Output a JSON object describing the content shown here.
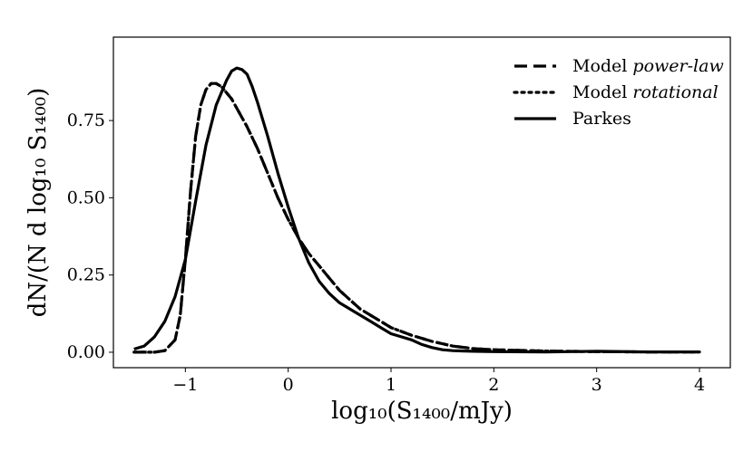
{
  "chart_data": {
    "type": "line",
    "title": "",
    "xlabel": "log₁₀(S₁₄₀₀/mJy)",
    "ylabel": "dN/(N d log₁₀ S₁₄₀₀)",
    "xlim": [
      -1.7,
      4.3
    ],
    "ylim": [
      -0.05,
      1.02
    ],
    "xticks": [
      -1,
      0,
      1,
      2,
      3,
      4
    ],
    "xtick_labels": [
      "−1",
      "0",
      "1",
      "2",
      "3",
      "4"
    ],
    "yticks": [
      0.0,
      0.25,
      0.5,
      0.75
    ],
    "ytick_labels": [
      "0.00",
      "0.25",
      "0.50",
      "0.75"
    ],
    "grid": false,
    "legend_position": "top-right",
    "series": [
      {
        "name": "Model power-law",
        "legend_prefix": "Model ",
        "legend_italic": "power-law",
        "style": "dashed",
        "color": "#000000",
        "x": [
          -1.5,
          -1.3,
          -1.2,
          -1.1,
          -1.05,
          -1.0,
          -0.95,
          -0.9,
          -0.85,
          -0.8,
          -0.75,
          -0.7,
          -0.65,
          -0.6,
          -0.55,
          -0.5,
          -0.4,
          -0.3,
          -0.2,
          -0.1,
          0.0,
          0.1,
          0.2,
          0.3,
          0.4,
          0.5,
          0.6,
          0.7,
          0.8,
          0.9,
          1.0,
          1.2,
          1.4,
          1.6,
          1.8,
          2.0,
          2.5,
          3.0,
          3.5,
          4.0
        ],
        "y": [
          0.0,
          0.0,
          0.005,
          0.04,
          0.12,
          0.3,
          0.52,
          0.7,
          0.8,
          0.85,
          0.87,
          0.87,
          0.86,
          0.84,
          0.82,
          0.79,
          0.73,
          0.66,
          0.58,
          0.5,
          0.43,
          0.37,
          0.32,
          0.28,
          0.24,
          0.2,
          0.17,
          0.14,
          0.12,
          0.1,
          0.08,
          0.055,
          0.035,
          0.02,
          0.012,
          0.008,
          0.004,
          0.002,
          0.001,
          0.001
        ]
      },
      {
        "name": "Model rotational",
        "legend_prefix": "Model ",
        "legend_italic": "rotational",
        "style": "dotted",
        "color": "#000000",
        "x": [
          -1.5,
          -1.3,
          -1.2,
          -1.1,
          -1.05,
          -1.0,
          -0.95,
          -0.9,
          -0.85,
          -0.8,
          -0.75,
          -0.7,
          -0.65,
          -0.6,
          -0.55,
          -0.5,
          -0.4,
          -0.3,
          -0.2,
          -0.1,
          0.0,
          0.1,
          0.2,
          0.3,
          0.4,
          0.5,
          0.6,
          0.7,
          0.8,
          0.9,
          1.0,
          1.2,
          1.4,
          1.6,
          1.8,
          2.0,
          2.5,
          3.0,
          3.5,
          4.0
        ],
        "y": [
          0.0,
          0.0,
          0.005,
          0.04,
          0.12,
          0.3,
          0.52,
          0.7,
          0.8,
          0.85,
          0.87,
          0.87,
          0.86,
          0.84,
          0.82,
          0.79,
          0.73,
          0.66,
          0.58,
          0.5,
          0.43,
          0.37,
          0.32,
          0.28,
          0.24,
          0.2,
          0.17,
          0.14,
          0.12,
          0.1,
          0.08,
          0.055,
          0.035,
          0.02,
          0.012,
          0.008,
          0.004,
          0.002,
          0.001,
          0.001
        ]
      },
      {
        "name": "Parkes",
        "legend_prefix": "Parkes",
        "legend_italic": "",
        "style": "solid",
        "color": "#000000",
        "x": [
          -1.5,
          -1.4,
          -1.3,
          -1.2,
          -1.1,
          -1.0,
          -0.9,
          -0.8,
          -0.7,
          -0.6,
          -0.55,
          -0.5,
          -0.45,
          -0.4,
          -0.35,
          -0.3,
          -0.2,
          -0.1,
          0.0,
          0.1,
          0.2,
          0.3,
          0.4,
          0.5,
          0.6,
          0.7,
          0.8,
          0.9,
          1.0,
          1.1,
          1.2,
          1.3,
          1.4,
          1.5,
          1.6,
          1.8,
          2.0,
          2.5,
          3.0,
          3.5,
          4.0
        ],
        "y": [
          0.01,
          0.02,
          0.05,
          0.1,
          0.18,
          0.3,
          0.49,
          0.67,
          0.8,
          0.88,
          0.91,
          0.92,
          0.915,
          0.9,
          0.86,
          0.81,
          0.7,
          0.58,
          0.47,
          0.37,
          0.29,
          0.23,
          0.19,
          0.16,
          0.14,
          0.12,
          0.1,
          0.08,
          0.06,
          0.05,
          0.04,
          0.025,
          0.015,
          0.008,
          0.005,
          0.003,
          0.002,
          0.001,
          0.003,
          0.001,
          0.001
        ]
      }
    ]
  }
}
